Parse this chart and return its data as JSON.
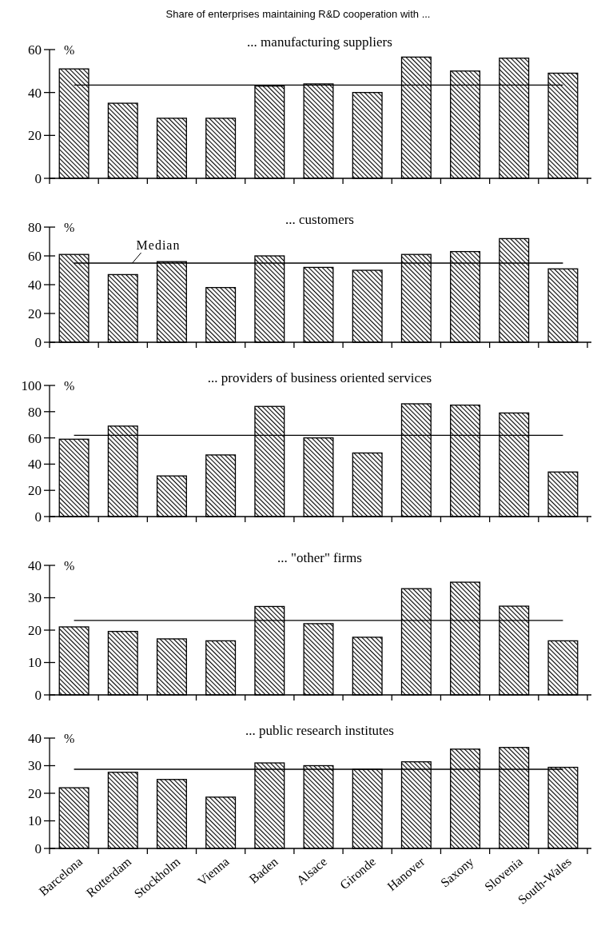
{
  "chart_data": [
    {
      "type": "bar",
      "title": "Share of enterprises maintaining R&D cooperation with ...",
      "subtitle": "... manufacturing suppliers",
      "ylabel": "%",
      "categories": [
        null,
        null,
        null,
        null,
        null,
        null,
        null,
        null,
        null,
        null,
        null
      ],
      "values": [
        51,
        35,
        28,
        28,
        43,
        44,
        40,
        56.5,
        50,
        56,
        49
      ],
      "color": "#000000",
      "ylim": [
        0,
        60
      ],
      "yticks": [
        0,
        20,
        40,
        60
      ],
      "ref_lines": [
        {
          "axis": "y",
          "value": 43.5
        }
      ],
      "tick_labels": "y"
    },
    {
      "type": "bar",
      "subtitle": "... customers",
      "ylabel": "%",
      "categories": [
        null,
        null,
        null,
        null,
        null,
        null,
        null,
        null,
        null,
        null,
        null
      ],
      "values": [
        61,
        47,
        56,
        38,
        60,
        52,
        50,
        61,
        63,
        72,
        51
      ],
      "color": "#000000",
      "ylim": [
        0,
        80
      ],
      "yticks": [
        0,
        20,
        40,
        60,
        80
      ],
      "ref_lines": [
        {
          "axis": "y",
          "value": 55,
          "label": "Median"
        }
      ],
      "tick_labels": "y"
    },
    {
      "type": "bar",
      "subtitle": "... providers of business oriented services",
      "ylabel": "%",
      "categories": [
        null,
        null,
        null,
        null,
        null,
        null,
        null,
        null,
        null,
        null,
        null
      ],
      "values": [
        59,
        69,
        31,
        47,
        84,
        60,
        48.5,
        86,
        85,
        79,
        34
      ],
      "color": "#000000",
      "ylim": [
        0,
        100
      ],
      "yticks": [
        0,
        20,
        40,
        60,
        80,
        100
      ],
      "ref_lines": [
        {
          "axis": "y",
          "value": 62
        }
      ],
      "tick_labels": "y"
    },
    {
      "type": "bar",
      "subtitle": "... \"other\" firms",
      "ylabel": "%",
      "categories": [
        null,
        null,
        null,
        null,
        null,
        null,
        null,
        null,
        null,
        null,
        null
      ],
      "values": [
        21,
        19.6,
        17.3,
        16.7,
        27.3,
        22,
        17.8,
        32.8,
        34.8,
        27.4,
        16.7
      ],
      "color": "#000000",
      "ylim": [
        0,
        40
      ],
      "yticks": [
        0,
        10,
        20,
        30,
        40
      ],
      "ref_lines": [
        {
          "axis": "y",
          "value": 23
        }
      ],
      "tick_labels": "y"
    },
    {
      "type": "bar",
      "subtitle": "... public research institutes",
      "ylabel": "%",
      "categories": [
        "Barcelona",
        "Rotterdam",
        "Stockholm",
        "Vienna",
        "Baden",
        "Alsace",
        "Gironde",
        "Hanover",
        "Saxony",
        "Slovenia",
        "South-Wales"
      ],
      "values": [
        22,
        27.6,
        25,
        18.6,
        31,
        30,
        28.7,
        31.4,
        36,
        36.6,
        29.4
      ],
      "color": "#000000",
      "ylim": [
        0,
        40
      ],
      "yticks": [
        0,
        10,
        20,
        30,
        40
      ],
      "ref_lines": [
        {
          "axis": "y",
          "value": 28.7
        }
      ]
    }
  ]
}
